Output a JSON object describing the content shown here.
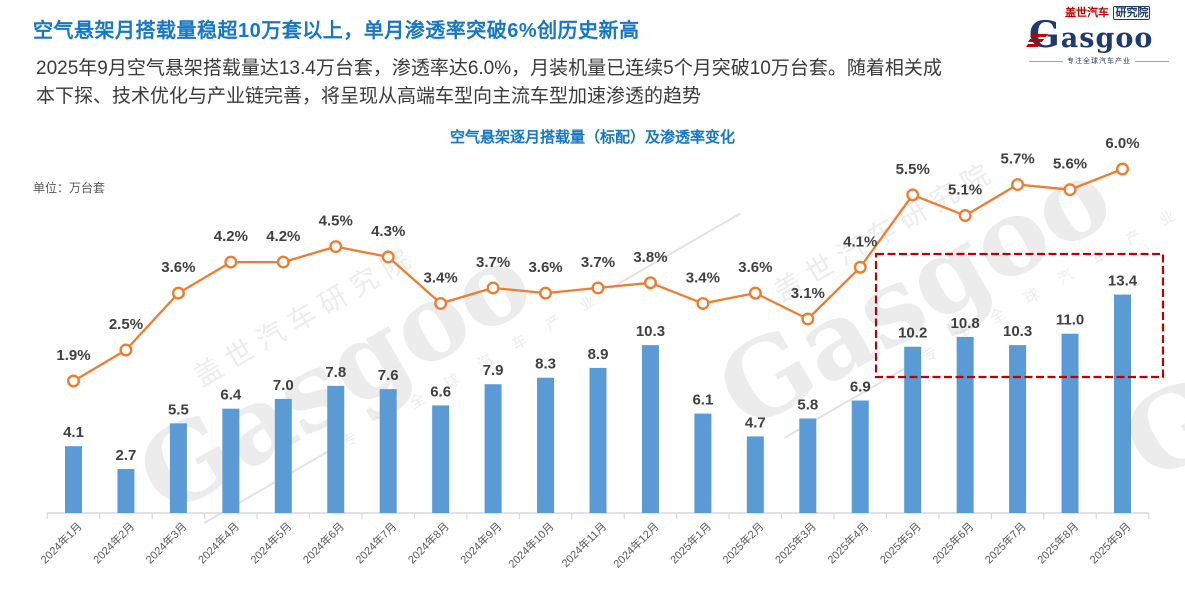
{
  "header": {
    "title": "空气悬架月搭载量稳超10万套以上，单月渗透率突破6%创历史新高",
    "paragraph_lines": [
      "2025年9月空气悬架搭载量达13.4万台套，渗透率达6.0%，月装机量已连续5个月突破10万台套。随着相关成",
      "本下探、技术优化与产业链完善，将呈现从高端车型向主流车型加速渗透的趋势"
    ]
  },
  "logo": {
    "name_red": "盖世汽车",
    "name_navy": "研究院",
    "wordmark": "Gasgoo",
    "tagline": "专注全球汽车产业"
  },
  "watermark": {
    "cn": "盖世汽车研究院",
    "word": "Gasgoo",
    "tagline": "专 注 全 球 汽 车 产 业"
  },
  "chart": {
    "title": "空气悬架逐月搭载量（标配）及渗透率变化",
    "unit_label": "单位：万台套"
  },
  "colors": {
    "bar": "#5B9BD5",
    "line": "#ED7D31",
    "marker_fill": "#ffffff",
    "data_label": "#404040",
    "axis": "#D8D8D8",
    "tick_label": "#595959",
    "highlight": "#C00000",
    "title_blue": "#1577C6"
  },
  "chart_data": {
    "type": "combo_bar_line",
    "title": "空气悬架逐月搭载量（标配）及渗透率变化",
    "unit_label": "单位：万台套",
    "grid": false,
    "legend": "none",
    "categories": [
      "2024年1月",
      "2024年2月",
      "2024年3月",
      "2024年4月",
      "2024年5月",
      "2024年6月",
      "2024年7月",
      "2024年8月",
      "2024年9月",
      "2024年10月",
      "2024年11月",
      "2024年12月",
      "2025年1月",
      "2025年2月",
      "2025年3月",
      "2025年4月",
      "2025年5月",
      "2025年6月",
      "2025年7月",
      "2025年8月",
      "2025年9月"
    ],
    "series": [
      {
        "name": "搭载量（标配，万台套）",
        "type": "bar",
        "values": [
          4.1,
          2.7,
          5.5,
          6.4,
          7.0,
          7.8,
          7.6,
          6.6,
          7.9,
          8.3,
          8.9,
          10.3,
          6.1,
          4.7,
          5.8,
          6.9,
          10.2,
          10.8,
          10.3,
          11.0,
          13.4
        ]
      },
      {
        "name": "渗透率",
        "type": "line",
        "unit": "%",
        "values": [
          1.9,
          2.5,
          3.6,
          4.2,
          4.2,
          4.5,
          4.3,
          3.4,
          3.7,
          3.6,
          3.7,
          3.8,
          3.4,
          3.6,
          3.1,
          4.1,
          5.5,
          5.1,
          5.7,
          5.6,
          6.0
        ]
      }
    ],
    "highlight_box": {
      "from": "2025年5月",
      "to": "2025年9月",
      "note": "连续5个月突破10万台套",
      "style": "red-dashed"
    }
  }
}
